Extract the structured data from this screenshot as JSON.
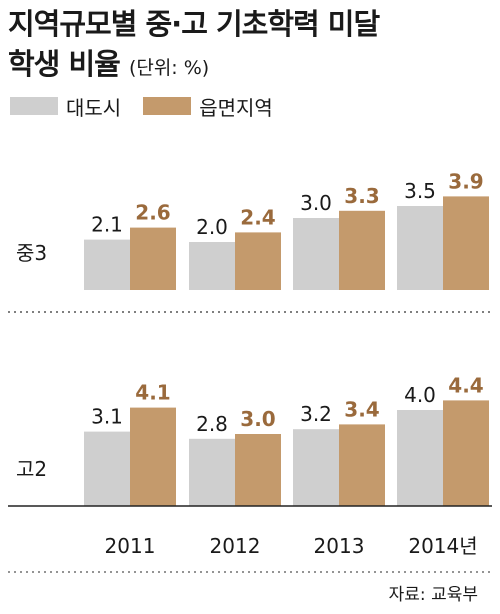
{
  "title_line1": "지역규모별 중·고 기초학력 미달",
  "title_line2": "학생 비율",
  "unit": "(단위: %)",
  "source": "자료: 교육부",
  "colors": {
    "metro": "#cfcfcf",
    "town": "#c49a6c",
    "town_label": "#9a6a3c"
  },
  "chart_data": {
    "type": "bar",
    "categories": [
      "2011",
      "2012",
      "2013",
      "2014년"
    ],
    "legend": [
      "대도시",
      "읍면지역"
    ],
    "panels": [
      {
        "label": "중3",
        "series": [
          {
            "name": "대도시",
            "values": [
              2.1,
              2.0,
              3.0,
              3.5
            ]
          },
          {
            "name": "읍면지역",
            "values": [
              2.6,
              2.4,
              3.3,
              3.9
            ]
          }
        ]
      },
      {
        "label": "고2",
        "series": [
          {
            "name": "대도시",
            "values": [
              3.1,
              2.8,
              3.2,
              4.0
            ]
          },
          {
            "name": "읍면지역",
            "values": [
              4.1,
              3.0,
              3.4,
              4.4
            ]
          }
        ]
      }
    ]
  }
}
